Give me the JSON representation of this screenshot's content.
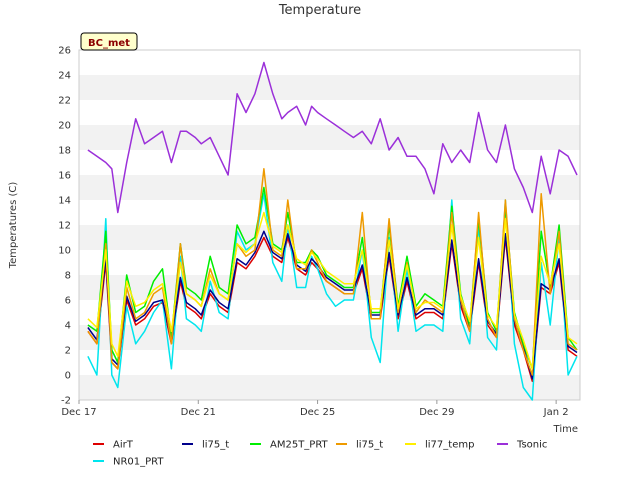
{
  "chart_data": {
    "type": "line",
    "title": "Temperature",
    "xlabel": "Time",
    "ylabel": "Temperatures (C)",
    "badge": "BC_met",
    "ylim": [
      -2,
      26
    ],
    "yticks": [
      -2,
      0,
      2,
      4,
      6,
      8,
      10,
      12,
      14,
      16,
      18,
      20,
      22,
      24,
      26
    ],
    "xlim": [
      0,
      16.8
    ],
    "xticks": [
      {
        "x": 0,
        "label": "Dec 17"
      },
      {
        "x": 4,
        "label": "Dec 21"
      },
      {
        "x": 8,
        "label": "Dec 25"
      },
      {
        "x": 12,
        "label": "Dec 29"
      },
      {
        "x": 16,
        "label": "Jan 2"
      }
    ],
    "grid": "horizontal alternating bands",
    "legend_position": "bottom",
    "x": [
      0.3,
      0.6,
      0.9,
      1.1,
      1.3,
      1.6,
      1.9,
      2.2,
      2.5,
      2.8,
      3.1,
      3.4,
      3.6,
      3.9,
      4.1,
      4.4,
      4.7,
      5.0,
      5.3,
      5.6,
      5.9,
      6.2,
      6.5,
      6.8,
      7.0,
      7.3,
      7.6,
      7.8,
      8.0,
      8.3,
      8.6,
      8.9,
      9.2,
      9.5,
      9.8,
      10.1,
      10.4,
      10.7,
      11.0,
      11.3,
      11.6,
      11.9,
      12.2,
      12.5,
      12.8,
      13.1,
      13.4,
      13.7,
      14.0,
      14.3,
      14.6,
      14.9,
      15.2,
      15.5,
      15.8,
      16.1,
      16.4,
      16.7
    ],
    "series": [
      {
        "name": "AirT",
        "color": "#dd0000",
        "values": [
          3.5,
          2.5,
          9.0,
          1.0,
          0.5,
          6.0,
          4.0,
          4.5,
          5.5,
          5.8,
          2.5,
          7.5,
          5.5,
          5.0,
          4.5,
          6.5,
          5.5,
          5.0,
          9.0,
          8.5,
          9.5,
          11.0,
          9.5,
          9.0,
          11.0,
          8.5,
          8.0,
          9.0,
          8.5,
          7.5,
          7.0,
          6.5,
          6.5,
          8.5,
          4.5,
          4.5,
          9.5,
          4.5,
          7.5,
          4.5,
          5.0,
          5.0,
          4.5,
          10.5,
          5.5,
          3.5,
          9.0,
          4.0,
          3.0,
          11.0,
          4.0,
          2.0,
          -0.5,
          7.0,
          6.5,
          9.0,
          2.0,
          1.5
        ]
      },
      {
        "name": "NR01_PRT",
        "color": "#00e5ee",
        "values": [
          1.5,
          0.0,
          12.5,
          0.0,
          -1.0,
          5.5,
          2.5,
          3.5,
          5.0,
          6.0,
          0.5,
          9.5,
          4.5,
          4.0,
          3.5,
          7.5,
          5.0,
          4.5,
          11.5,
          10.0,
          10.5,
          14.5,
          9.0,
          7.5,
          12.0,
          7.0,
          7.0,
          9.5,
          8.5,
          6.5,
          5.5,
          6.0,
          6.0,
          10.0,
          3.0,
          1.0,
          11.0,
          3.5,
          8.5,
          3.5,
          4.0,
          4.0,
          3.5,
          14.0,
          4.5,
          2.5,
          12.0,
          3.0,
          2.0,
          14.0,
          2.5,
          -1.0,
          -2.0,
          9.0,
          4.0,
          11.0,
          0.0,
          1.5
        ]
      },
      {
        "name": "li75_t",
        "color": "#00008b",
        "values": [
          3.8,
          2.8,
          9.5,
          1.3,
          0.8,
          6.3,
          4.3,
          4.8,
          5.8,
          6.0,
          2.8,
          7.8,
          5.8,
          5.3,
          4.8,
          6.8,
          5.8,
          5.3,
          9.3,
          8.8,
          9.8,
          11.5,
          9.8,
          9.3,
          11.3,
          8.8,
          8.3,
          9.3,
          8.8,
          7.8,
          7.3,
          6.8,
          6.8,
          8.8,
          4.8,
          4.8,
          9.8,
          4.8,
          7.8,
          4.8,
          5.3,
          5.3,
          4.8,
          10.8,
          5.8,
          3.8,
          9.3,
          4.3,
          3.3,
          11.3,
          4.3,
          2.3,
          -0.3,
          7.3,
          6.8,
          9.3,
          2.3,
          1.8
        ]
      },
      {
        "name": "AM25T_PRT",
        "color": "#00ee00",
        "values": [
          4.0,
          3.5,
          11.5,
          2.0,
          1.0,
          8.0,
          5.0,
          5.5,
          7.5,
          8.5,
          3.0,
          10.5,
          7.0,
          6.5,
          6.0,
          9.5,
          7.0,
          6.5,
          12.0,
          10.5,
          11.0,
          15.0,
          10.5,
          10.0,
          13.0,
          9.0,
          9.0,
          10.0,
          9.5,
          8.0,
          7.5,
          7.0,
          7.0,
          11.0,
          5.0,
          5.0,
          12.0,
          5.5,
          9.5,
          5.5,
          6.5,
          6.0,
          5.5,
          13.5,
          6.5,
          4.0,
          12.5,
          5.0,
          3.5,
          13.5,
          5.0,
          2.5,
          0.5,
          11.5,
          7.0,
          12.0,
          3.0,
          2.0
        ]
      },
      {
        "name": "li75_t",
        "color": "#ee9a00",
        "values": [
          3.5,
          2.5,
          10.5,
          1.0,
          0.5,
          7.0,
          4.5,
          5.0,
          6.5,
          7.0,
          2.5,
          10.5,
          6.5,
          6.0,
          5.5,
          8.5,
          6.5,
          6.0,
          10.5,
          9.5,
          10.0,
          16.5,
          10.0,
          9.5,
          14.0,
          8.5,
          8.5,
          10.0,
          9.0,
          7.5,
          7.0,
          6.5,
          6.5,
          13.0,
          4.5,
          4.5,
          12.5,
          5.0,
          9.0,
          5.0,
          6.0,
          5.5,
          5.0,
          13.0,
          6.0,
          3.5,
          13.0,
          4.5,
          3.0,
          14.0,
          4.5,
          2.0,
          0.0,
          14.5,
          6.5,
          11.5,
          2.5,
          2.0
        ]
      },
      {
        "name": "li77_temp",
        "color": "#ffee00",
        "values": [
          4.5,
          3.8,
          10.0,
          2.5,
          1.5,
          7.5,
          5.5,
          5.8,
          6.8,
          7.3,
          3.5,
          9.0,
          6.5,
          6.0,
          5.5,
          8.0,
          6.5,
          6.0,
          10.5,
          9.8,
          10.5,
          13.0,
          10.3,
          9.8,
          12.0,
          9.3,
          8.8,
          9.8,
          9.3,
          8.3,
          7.8,
          7.3,
          7.3,
          10.0,
          5.3,
          5.3,
          10.8,
          5.3,
          8.8,
          5.3,
          5.8,
          5.8,
          5.3,
          12.0,
          6.3,
          4.3,
          11.0,
          4.8,
          3.8,
          12.5,
          4.8,
          2.8,
          0.5,
          9.5,
          7.3,
          10.5,
          3.0,
          2.5
        ]
      },
      {
        "name": "Tsonic",
        "color": "#9b30d9",
        "values": [
          18.0,
          17.5,
          17.0,
          16.5,
          13.0,
          17.0,
          20.5,
          18.5,
          19.0,
          19.5,
          17.0,
          19.5,
          19.5,
          19.0,
          18.5,
          19.0,
          17.5,
          16.0,
          22.5,
          21.0,
          22.5,
          25.0,
          22.5,
          20.5,
          21.0,
          21.5,
          20.0,
          21.5,
          21.0,
          20.5,
          20.0,
          19.5,
          19.0,
          19.5,
          18.5,
          20.5,
          18.0,
          19.0,
          17.5,
          17.5,
          16.5,
          14.5,
          18.5,
          17.0,
          18.0,
          17.0,
          21.0,
          18.0,
          17.0,
          20.0,
          16.5,
          15.0,
          13.0,
          17.5,
          14.5,
          18.0,
          17.5,
          16.0
        ]
      }
    ]
  }
}
